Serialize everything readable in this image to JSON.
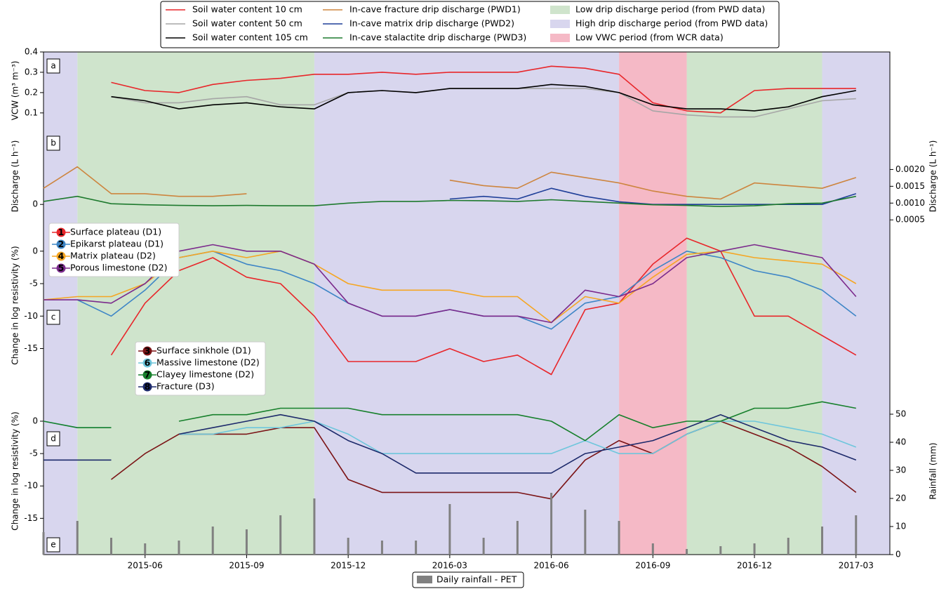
{
  "chart_data": [
    {
      "type": "line",
      "panel_label": "a",
      "ylabel": "VCW (m³ m⁻³)",
      "ylim": [
        0.02,
        0.4
      ],
      "yticks": [
        0.1,
        0.2,
        0.3,
        0.4
      ],
      "series": [
        {
          "name": "Soil water content 10 cm",
          "color": "#e8262a",
          "values": [
            null,
            null,
            0.25,
            0.21,
            0.2,
            0.24,
            0.26,
            0.27,
            0.29,
            0.29,
            0.3,
            0.29,
            0.3,
            0.3,
            0.3,
            0.33,
            0.32,
            0.29,
            0.15,
            0.11,
            0.1,
            0.21,
            0.22,
            0.22,
            0.22
          ]
        },
        {
          "name": "Soil water content 50 cm",
          "color": "#a6a6a6",
          "values": [
            null,
            null,
            0.18,
            0.15,
            0.15,
            0.17,
            0.18,
            0.14,
            0.14,
            0.2,
            0.21,
            0.2,
            0.22,
            0.22,
            0.22,
            0.22,
            0.22,
            0.2,
            0.11,
            0.09,
            0.08,
            0.08,
            0.12,
            0.16,
            0.17
          ]
        },
        {
          "name": "Soil water content 105 cm",
          "color": "#000000",
          "values": [
            null,
            null,
            0.18,
            0.16,
            0.12,
            0.14,
            0.15,
            0.13,
            0.12,
            0.2,
            0.21,
            0.2,
            0.22,
            0.22,
            0.22,
            0.24,
            0.23,
            0.2,
            0.14,
            0.12,
            0.12,
            0.11,
            0.13,
            0.18,
            0.21
          ]
        }
      ]
    },
    {
      "type": "line",
      "panel_label": "b",
      "ylabel": "Discharge (L h⁻¹)",
      "ylim": [
        -7,
        28
      ],
      "yticks": [
        0
      ],
      "y2label": "Discharge (L h⁻¹)",
      "y2lim": [
        0.0004,
        0.0032
      ],
      "y2ticks": [
        0.0005,
        {
          "value": 0.001,
          "label": "0.0010"
        },
        0.0015,
        {
          "value": 0.002,
          "label": "0.0020"
        }
      ],
      "series": [
        {
          "name": "In-cave fracture drip discharge (PWD1)",
          "color": "#cd853f",
          "values": [
            6,
            14,
            4,
            4,
            3,
            3,
            4,
            null,
            null,
            null,
            null,
            null,
            9,
            7,
            6,
            12,
            10,
            8,
            5,
            3,
            2,
            8,
            7,
            6,
            10
          ]
        },
        {
          "name": "In-cave matrix drip discharge (PWD2)",
          "color": "#1f3f99",
          "values": [
            null,
            null,
            null,
            null,
            null,
            null,
            null,
            null,
            null,
            null,
            null,
            null,
            2,
            3,
            2,
            6,
            3,
            1,
            0,
            0,
            0,
            0,
            0,
            0,
            4
          ]
        },
        {
          "name": "In-cave stalactite drip discharge (PWD3)",
          "color": "#1e7a2e",
          "axis": "y2",
          "values": [
            0.00105,
            0.0012,
            0.00098,
            0.00095,
            0.00093,
            0.00092,
            0.00093,
            0.00092,
            0.00092,
            0.001,
            0.00105,
            0.00105,
            0.00108,
            0.00107,
            0.00105,
            0.0011,
            0.00105,
            0.001,
            0.00095,
            0.00093,
            0.0009,
            0.00092,
            0.00098,
            0.001,
            0.0012
          ]
        }
      ]
    },
    {
      "type": "line",
      "panel_label": "c",
      "ylabel": "Change in log resistivity (%)",
      "ylim": [
        -21,
        4.3
      ],
      "yticks": [
        -15,
        -10,
        -5,
        0
      ],
      "series": [
        {
          "name": "Surface plateau (D1)",
          "marker": "1",
          "color": "#e8262a",
          "values": [
            null,
            null,
            -16,
            -8,
            -3,
            -1,
            -4,
            -5,
            -10,
            -17,
            -17,
            -17,
            -15,
            -17,
            -16,
            -19,
            -9,
            -8,
            -2,
            2,
            0,
            -10,
            -10,
            -13,
            -16
          ]
        },
        {
          "name": "Epikarst plateau (D1)",
          "marker": "2",
          "color": "#3d85c6",
          "values": [
            null,
            -7.5,
            -10,
            -6,
            -1,
            0,
            -2,
            -3,
            -5,
            -8,
            -10,
            -10,
            -9,
            -10,
            -10,
            -12,
            -8,
            -7,
            -3,
            0,
            -1,
            -3,
            -4,
            -6,
            -10
          ]
        },
        {
          "name": "Matrix plateau (D2)",
          "marker": "4",
          "color": "#f5a623",
          "values": [
            -7.5,
            -7,
            -7,
            -5,
            -1,
            0,
            -1,
            0,
            -2,
            -5,
            -6,
            -6,
            -6,
            -7,
            -7,
            -11,
            -7,
            -8,
            -4,
            -0.5,
            0,
            -1,
            -1.5,
            -2,
            -5
          ]
        },
        {
          "name": "Porous limestone (D2)",
          "marker": "5",
          "color": "#7b2a8c",
          "values": [
            -7.5,
            -7.5,
            -8,
            -5,
            0,
            1,
            0,
            0,
            -2,
            -8,
            -10,
            -10,
            -9,
            -10,
            -10,
            -11,
            -6,
            -7,
            -5,
            -1,
            0,
            1,
            0,
            -1,
            -7
          ]
        }
      ]
    },
    {
      "type": "line",
      "panel_label": "d",
      "ylabel": "Change in log resistivity (%)",
      "ylim": [
        -20.6,
        5.2
      ],
      "yticks": [
        -15,
        -10,
        -5,
        0
      ],
      "series": [
        {
          "name": "Surface sinkhole (D1)",
          "marker": "3",
          "color": "#7b1416",
          "values": [
            null,
            null,
            -9,
            -5,
            -2,
            -2,
            -2,
            -1,
            -1,
            -9,
            -11,
            -11,
            -11,
            -11,
            -11,
            -12,
            -6,
            -3,
            -5,
            -2,
            0,
            -2,
            -4,
            -7,
            -11
          ]
        },
        {
          "name": "Massive limestone (D2)",
          "marker": "6",
          "color": "#6ec6dc",
          "values": [
            0,
            -1,
            -1,
            null,
            -2,
            -2,
            -1,
            -1,
            0,
            -2,
            -5,
            -5,
            -5,
            -5,
            -5,
            -5,
            -3,
            -5,
            -5,
            -2,
            0,
            0,
            -1,
            -2,
            -4
          ]
        },
        {
          "name": "Clayey limestone (D2)",
          "marker": "7",
          "color": "#17802c",
          "values": [
            0,
            -1,
            -1,
            null,
            0,
            1,
            1,
            2,
            2,
            2,
            1,
            1,
            1,
            1,
            1,
            0,
            -3,
            1,
            -1,
            0,
            0,
            2,
            2,
            3,
            2
          ]
        },
        {
          "name": "Fracture (D3)",
          "marker": "8",
          "color": "#1d2a6b",
          "values": [
            -6,
            -6,
            -6,
            null,
            -2,
            -1,
            0,
            1,
            0,
            -3,
            -5,
            -8,
            -8,
            -8,
            -8,
            -8,
            -5,
            -4,
            -3,
            -1,
            1,
            -1,
            -3,
            -4,
            -6
          ]
        }
      ]
    },
    {
      "type": "bar",
      "panel_label": "e",
      "ylabel": "Rainfall (mm)",
      "axis_position": "right",
      "ylim": [
        0,
        59.5
      ],
      "yticks": [
        0,
        10,
        20,
        30,
        40,
        50
      ],
      "series": [
        {
          "name": "Daily rainfall - PET",
          "color": "#808080",
          "values": [
            8,
            12,
            6,
            4,
            5,
            10,
            9,
            14,
            20,
            6,
            5,
            5,
            18,
            6,
            12,
            22,
            16,
            12,
            4,
            2,
            3,
            4,
            6,
            10,
            14
          ]
        }
      ]
    }
  ],
  "time_axis": {
    "x": [
      "2015-03",
      "2015-04",
      "2015-05",
      "2015-06",
      "2015-07",
      "2015-08",
      "2015-09",
      "2015-10",
      "2015-11",
      "2015-12",
      "2016-01",
      "2016-02",
      "2016-03",
      "2016-04",
      "2016-05",
      "2016-06",
      "2016-07",
      "2016-08",
      "2016-09",
      "2016-10",
      "2016-11",
      "2016-12",
      "2017-01",
      "2017-02",
      "2017-03"
    ],
    "xlim": [
      "2015-03",
      "2017-04"
    ],
    "xticks": [
      "2015-06",
      "2015-09",
      "2015-12",
      "2016-03",
      "2016-06",
      "2016-09",
      "2016-12",
      "2017-03"
    ]
  },
  "periods": [
    {
      "name": "Low drip discharge period (from PWD data)",
      "color": "#cfe4cc",
      "spans": [
        [
          "2015-04",
          "2015-11"
        ],
        [
          "2016-10",
          "2017-02"
        ]
      ]
    },
    {
      "name": "High drip discharge period (from PWD data)",
      "color": "#d8d6ee",
      "spans": [
        [
          "2015-03",
          "2015-04"
        ],
        [
          "2015-11",
          "2016-08"
        ],
        [
          "2017-02",
          "2017-04"
        ]
      ]
    },
    {
      "name": "Low VWC period (from WCR data)",
      "color": "#f5b9c6",
      "spans": [
        [
          "2016-08",
          "2016-10"
        ]
      ]
    }
  ]
}
